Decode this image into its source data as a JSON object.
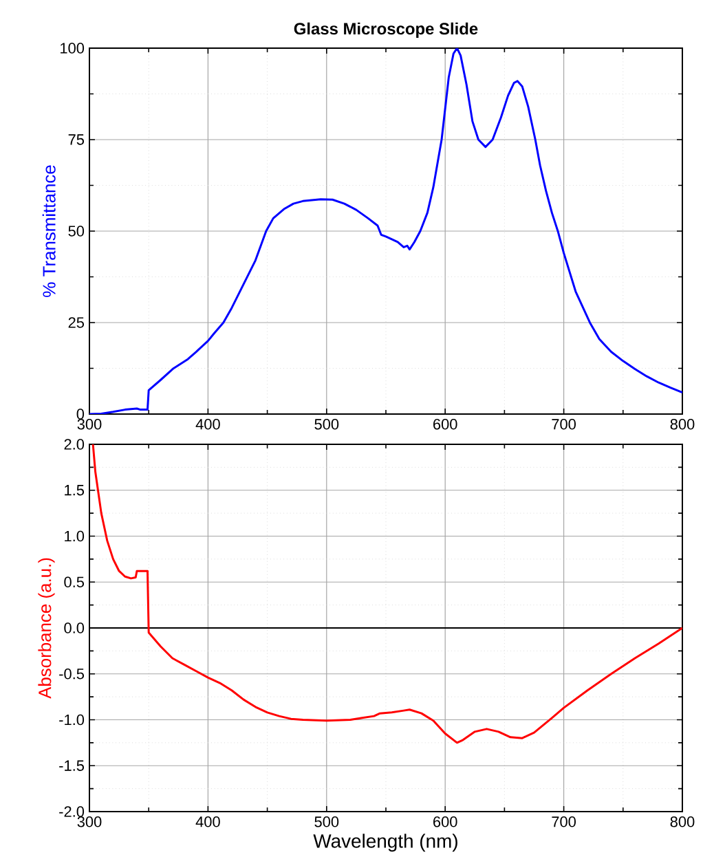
{
  "chart_data": [
    {
      "type": "line",
      "title": "Glass Microscope Slide",
      "ylabel": "% Transmittance",
      "xlim": [
        300,
        800
      ],
      "xticks": [
        300,
        400,
        500,
        600,
        700,
        800
      ],
      "ylim": [
        0,
        100
      ],
      "yticks": [
        0,
        25,
        50,
        75,
        100
      ],
      "grid": true,
      "series": [
        {
          "color": "#0000ff",
          "x": [
            300,
            310,
            320,
            330,
            340,
            343,
            349,
            350,
            360,
            371,
            383,
            390,
            400,
            405,
            413,
            420,
            430,
            440,
            449,
            455,
            464,
            472,
            480,
            495,
            505,
            515,
            525,
            535,
            543,
            546,
            550,
            560,
            565,
            568,
            570,
            574,
            579,
            585,
            590,
            597,
            603,
            607,
            610,
            613,
            618,
            623,
            628,
            634,
            640,
            647,
            653,
            658,
            661,
            665,
            670,
            676,
            680,
            685,
            690,
            695,
            700,
            710,
            722,
            730,
            740,
            750,
            760,
            770,
            780,
            790,
            800
          ],
          "values": [
            0,
            0.1,
            0.6,
            1.2,
            1.5,
            1.2,
            1.2,
            6.5,
            9.3,
            12.5,
            15,
            17,
            20,
            22,
            25,
            29,
            35.5,
            42,
            50,
            53.5,
            56,
            57.5,
            58.2,
            58.7,
            58.6,
            57.5,
            55.8,
            53.5,
            51.5,
            49,
            48.5,
            47,
            45.6,
            46,
            45,
            47,
            50,
            55,
            62,
            75,
            92,
            98.5,
            100,
            98,
            90,
            80,
            75,
            73,
            75,
            81,
            87,
            90.5,
            91,
            89.5,
            84,
            75,
            68,
            61,
            55,
            50,
            44,
            33.5,
            25,
            20.5,
            17,
            14.5,
            12.3,
            10.3,
            8.6,
            7.2,
            5.9
          ]
        }
      ]
    },
    {
      "type": "line",
      "xlabel": "Wavelength (nm)",
      "ylabel": "Absorbance (a.u.)",
      "xlim": [
        300,
        800
      ],
      "xticks": [
        300,
        400,
        500,
        600,
        700,
        800
      ],
      "ylim": [
        -2,
        2
      ],
      "yticks": [
        {
          "value": -2,
          "label": "-2.0"
        },
        {
          "value": -1.5,
          "label": "-1.5"
        },
        {
          "value": -1,
          "label": "-1.0"
        },
        {
          "value": -0.5,
          "label": "-0.5"
        },
        {
          "value": 0,
          "label": "0.0"
        },
        {
          "value": 0.5,
          "label": "0.5"
        },
        {
          "value": 1,
          "label": "1.0"
        },
        {
          "value": 1.5,
          "label": "1.5"
        },
        {
          "value": 2,
          "label": "2.0"
        }
      ],
      "grid": true,
      "ref_lines": [
        {
          "axis": "y",
          "value": 0,
          "color": "#000000"
        }
      ],
      "series": [
        {
          "color": "#ff0000",
          "x": [
            303,
            305,
            310,
            315,
            320,
            325,
            330,
            335,
            339,
            340,
            349,
            350,
            352,
            360,
            370,
            380,
            390,
            400,
            410,
            420,
            430,
            440,
            450,
            460,
            470,
            480,
            500,
            520,
            530,
            540,
            545,
            555,
            565,
            570,
            580,
            590,
            600,
            610,
            615,
            625,
            635,
            645,
            655,
            665,
            675,
            690,
            700,
            720,
            740,
            760,
            780,
            800
          ],
          "values": [
            2.0,
            1.7,
            1.25,
            0.95,
            0.75,
            0.62,
            0.56,
            0.54,
            0.55,
            0.62,
            0.62,
            -0.05,
            -0.08,
            -0.2,
            -0.33,
            -0.4,
            -0.47,
            -0.54,
            -0.6,
            -0.68,
            -0.78,
            -0.86,
            -0.92,
            -0.96,
            -0.99,
            -1.0,
            -1.01,
            -1.0,
            -0.98,
            -0.96,
            -0.93,
            -0.92,
            -0.9,
            -0.89,
            -0.93,
            -1.01,
            -1.15,
            -1.25,
            -1.22,
            -1.13,
            -1.1,
            -1.13,
            -1.19,
            -1.2,
            -1.14,
            -0.98,
            -0.87,
            -0.68,
            -0.5,
            -0.33,
            -0.17,
            0
          ]
        }
      ]
    }
  ]
}
